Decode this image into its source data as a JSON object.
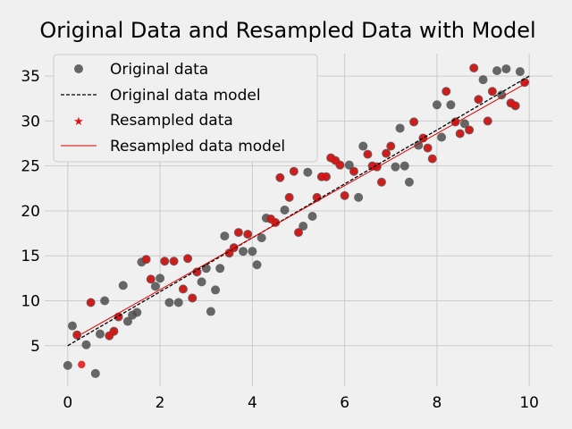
{
  "chart_data": {
    "type": "scatter",
    "title": "Original Data and Resampled Data with Model",
    "xlabel": "",
    "ylabel": "",
    "xlim": [
      -0.5,
      10.5
    ],
    "ylim": [
      0.5,
      37.5
    ],
    "xticks": [
      "0",
      "2",
      "4",
      "6",
      "8",
      "10"
    ],
    "yticks": [
      "5",
      "10",
      "15",
      "20",
      "25",
      "30",
      "35"
    ],
    "grid": true,
    "legend_position": "top-left",
    "legend": {
      "original_data": "Original data",
      "original_model": "Original data model",
      "resampled_data": "Resampled data",
      "resampled_model": "Resampled data model"
    },
    "colors": {
      "original_points": "#4d4d4d",
      "original_model": "#000000",
      "resampled_points": "#e01010",
      "resampled_model": "#e00000",
      "background": "#f0f0f0",
      "grid": "#cbcbcb"
    },
    "original_model": {
      "x": [
        0,
        10
      ],
      "y": [
        5.0,
        35.0
      ]
    },
    "resampled_model": {
      "x": [
        0.3,
        10
      ],
      "y": [
        6.3,
        34.4
      ]
    },
    "original_points": [
      [
        0.0,
        2.8
      ],
      [
        0.1,
        7.2
      ],
      [
        0.2,
        6.2
      ],
      [
        0.4,
        5.1
      ],
      [
        0.5,
        9.8
      ],
      [
        0.6,
        1.9
      ],
      [
        0.7,
        6.3
      ],
      [
        0.8,
        10.0
      ],
      [
        0.9,
        6.1
      ],
      [
        1.0,
        6.6
      ],
      [
        1.1,
        8.2
      ],
      [
        1.2,
        11.7
      ],
      [
        1.3,
        7.7
      ],
      [
        1.4,
        8.4
      ],
      [
        1.5,
        8.7
      ],
      [
        1.6,
        14.3
      ],
      [
        1.7,
        14.6
      ],
      [
        1.8,
        12.4
      ],
      [
        1.9,
        11.6
      ],
      [
        2.0,
        12.5
      ],
      [
        2.1,
        14.4
      ],
      [
        2.2,
        9.8
      ],
      [
        2.3,
        14.4
      ],
      [
        2.4,
        9.8
      ],
      [
        2.5,
        11.3
      ],
      [
        2.6,
        14.7
      ],
      [
        2.7,
        10.3
      ],
      [
        2.8,
        13.2
      ],
      [
        2.9,
        12.1
      ],
      [
        3.0,
        13.6
      ],
      [
        3.1,
        8.8
      ],
      [
        3.2,
        11.2
      ],
      [
        3.3,
        13.6
      ],
      [
        3.4,
        17.2
      ],
      [
        3.5,
        15.3
      ],
      [
        3.6,
        15.9
      ],
      [
        3.7,
        17.6
      ],
      [
        3.8,
        15.5
      ],
      [
        3.9,
        17.4
      ],
      [
        4.0,
        15.5
      ],
      [
        4.1,
        14.0
      ],
      [
        4.2,
        17.0
      ],
      [
        4.3,
        19.2
      ],
      [
        4.4,
        19.1
      ],
      [
        4.5,
        18.7
      ],
      [
        4.6,
        23.7
      ],
      [
        4.7,
        20.1
      ],
      [
        4.8,
        21.5
      ],
      [
        4.9,
        24.4
      ],
      [
        5.0,
        17.6
      ],
      [
        5.1,
        18.3
      ],
      [
        5.2,
        24.3
      ],
      [
        5.3,
        19.4
      ],
      [
        5.4,
        21.5
      ],
      [
        5.5,
        23.8
      ],
      [
        5.6,
        23.8
      ],
      [
        5.7,
        25.9
      ],
      [
        5.8,
        25.6
      ],
      [
        5.9,
        25.1
      ],
      [
        6.0,
        21.7
      ],
      [
        6.1,
        25.1
      ],
      [
        6.2,
        24.4
      ],
      [
        6.3,
        21.5
      ],
      [
        6.4,
        27.2
      ],
      [
        6.5,
        26.3
      ],
      [
        6.6,
        25.0
      ],
      [
        6.7,
        24.9
      ],
      [
        6.8,
        23.2
      ],
      [
        6.9,
        26.4
      ],
      [
        7.0,
        27.2
      ],
      [
        7.1,
        24.9
      ],
      [
        7.2,
        29.2
      ],
      [
        7.3,
        25.0
      ],
      [
        7.4,
        23.2
      ],
      [
        7.5,
        29.9
      ],
      [
        7.6,
        27.3
      ],
      [
        7.7,
        28.1
      ],
      [
        7.8,
        27.0
      ],
      [
        7.9,
        25.8
      ],
      [
        8.0,
        31.8
      ],
      [
        8.1,
        28.2
      ],
      [
        8.2,
        33.3
      ],
      [
        8.3,
        31.8
      ],
      [
        8.4,
        29.9
      ],
      [
        8.5,
        28.6
      ],
      [
        8.6,
        29.7
      ],
      [
        8.7,
        29.0
      ],
      [
        8.8,
        35.9
      ],
      [
        8.9,
        32.4
      ],
      [
        9.0,
        34.6
      ],
      [
        9.1,
        30.0
      ],
      [
        9.2,
        33.3
      ],
      [
        9.3,
        35.6
      ],
      [
        9.4,
        32.9
      ],
      [
        9.5,
        35.8
      ],
      [
        9.6,
        32.0
      ],
      [
        9.7,
        31.7
      ],
      [
        9.8,
        35.5
      ],
      [
        9.9,
        34.3
      ]
    ],
    "resampled_points": [
      [
        0.2,
        6.2
      ],
      [
        0.3,
        2.9
      ],
      [
        0.5,
        9.8
      ],
      [
        0.9,
        6.1
      ],
      [
        1.0,
        6.6
      ],
      [
        1.1,
        8.2
      ],
      [
        1.7,
        14.6
      ],
      [
        1.8,
        12.4
      ],
      [
        2.1,
        14.4
      ],
      [
        2.3,
        14.4
      ],
      [
        2.5,
        11.3
      ],
      [
        2.6,
        14.7
      ],
      [
        2.7,
        10.3
      ],
      [
        2.8,
        13.2
      ],
      [
        3.5,
        15.3
      ],
      [
        3.6,
        15.9
      ],
      [
        3.7,
        17.6
      ],
      [
        3.9,
        17.4
      ],
      [
        4.4,
        19.1
      ],
      [
        4.5,
        18.7
      ],
      [
        4.6,
        23.7
      ],
      [
        4.8,
        21.5
      ],
      [
        4.9,
        24.4
      ],
      [
        5.0,
        17.6
      ],
      [
        5.4,
        21.5
      ],
      [
        5.5,
        23.8
      ],
      [
        5.6,
        23.8
      ],
      [
        5.7,
        25.9
      ],
      [
        5.8,
        25.6
      ],
      [
        5.9,
        25.1
      ],
      [
        6.0,
        21.7
      ],
      [
        6.2,
        24.4
      ],
      [
        6.5,
        26.3
      ],
      [
        6.6,
        25.0
      ],
      [
        6.7,
        24.9
      ],
      [
        6.8,
        23.2
      ],
      [
        6.9,
        26.4
      ],
      [
        7.0,
        27.2
      ],
      [
        7.5,
        29.9
      ],
      [
        7.7,
        28.1
      ],
      [
        7.8,
        27.0
      ],
      [
        7.9,
        25.8
      ],
      [
        8.2,
        33.3
      ],
      [
        8.4,
        29.9
      ],
      [
        8.5,
        28.6
      ],
      [
        8.7,
        29.0
      ],
      [
        8.8,
        35.9
      ],
      [
        8.9,
        32.4
      ],
      [
        9.1,
        30.0
      ],
      [
        9.2,
        33.3
      ],
      [
        9.6,
        32.0
      ],
      [
        9.7,
        31.7
      ],
      [
        9.9,
        34.3
      ]
    ]
  }
}
